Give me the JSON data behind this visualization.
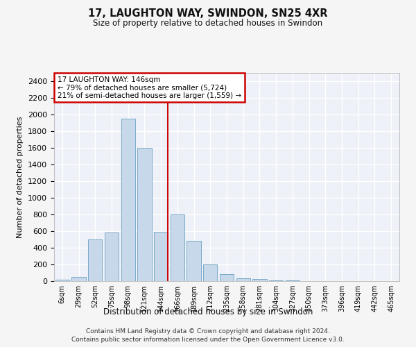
{
  "title1": "17, LAUGHTON WAY, SWINDON, SN25 4XR",
  "title2": "Size of property relative to detached houses in Swindon",
  "xlabel": "Distribution of detached houses by size in Swindon",
  "ylabel": "Number of detached properties",
  "footer1": "Contains HM Land Registry data © Crown copyright and database right 2024.",
  "footer2": "Contains public sector information licensed under the Open Government Licence v3.0.",
  "annotation_title": "17 LAUGHTON WAY: 146sqm",
  "annotation_line1": "← 79% of detached houses are smaller (5,724)",
  "annotation_line2": "21% of semi-detached houses are larger (1,559) →",
  "bar_color": "#c8d8eb",
  "bar_edge_color": "#7aaac8",
  "vline_color": "#cc0000",
  "vline_x_index": 6,
  "annotation_box_edgecolor": "#cc0000",
  "plot_bg_color": "#eef2f8",
  "grid_color": "#ffffff",
  "categories": [
    "6sqm",
    "29sqm",
    "52sqm",
    "75sqm",
    "98sqm",
    "121sqm",
    "144sqm",
    "166sqm",
    "189sqm",
    "212sqm",
    "235sqm",
    "258sqm",
    "281sqm",
    "304sqm",
    "327sqm",
    "350sqm",
    "373sqm",
    "396sqm",
    "419sqm",
    "442sqm",
    "465sqm"
  ],
  "values": [
    20,
    50,
    500,
    580,
    1950,
    1600,
    590,
    800,
    480,
    200,
    80,
    30,
    25,
    10,
    5,
    2,
    1,
    0,
    0,
    0,
    0
  ],
  "ylim": [
    0,
    2500
  ],
  "yticks": [
    0,
    200,
    400,
    600,
    800,
    1000,
    1200,
    1400,
    1600,
    1800,
    2000,
    2200,
    2400
  ],
  "figsize": [
    6.0,
    5.0
  ],
  "dpi": 100
}
